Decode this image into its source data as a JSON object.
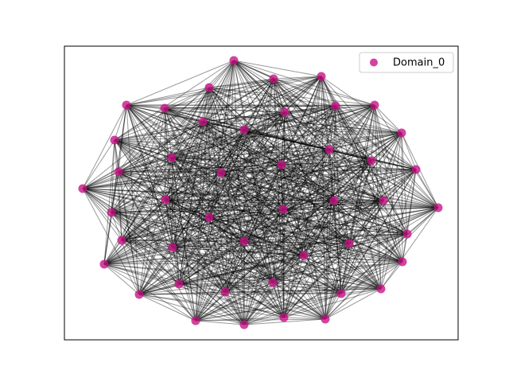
{
  "legend": {
    "label": "Domain_0",
    "color": "#c71585"
  }
}
